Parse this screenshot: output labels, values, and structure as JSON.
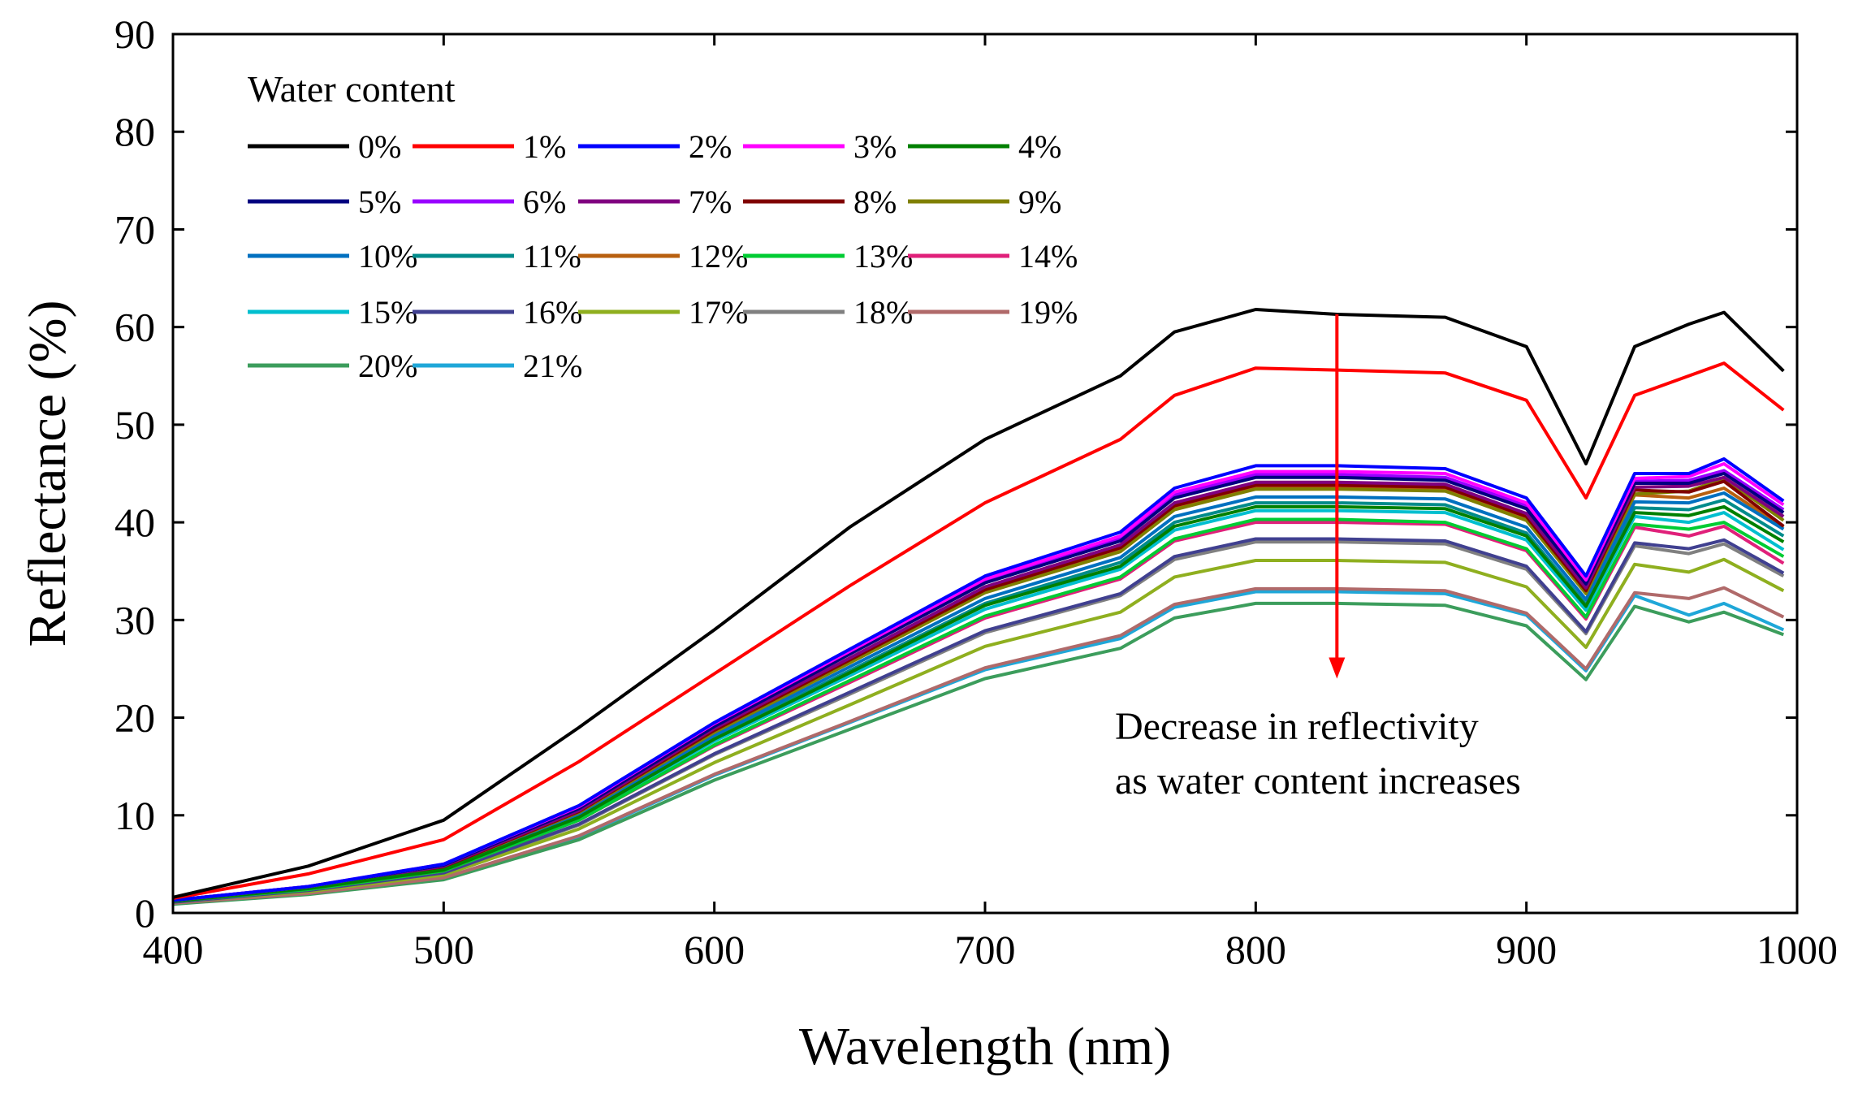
{
  "chart_data": {
    "type": "line",
    "title": "",
    "xlabel": "Wavelength (nm)",
    "ylabel": "Reflectance (%)",
    "xlim": [
      400,
      1000
    ],
    "ylim": [
      0,
      90
    ],
    "xticks": [
      400,
      500,
      600,
      700,
      800,
      900,
      1000
    ],
    "yticks": [
      0,
      10,
      20,
      30,
      40,
      50,
      60,
      70,
      80,
      90
    ],
    "grid": false,
    "legend_title": "Water content",
    "legend_position": "top-left",
    "x": [
      400,
      450,
      500,
      550,
      600,
      650,
      700,
      750,
      770,
      800,
      830,
      870,
      900,
      922,
      940,
      960,
      973,
      995
    ],
    "series": [
      {
        "name": "0%",
        "color": "#000000",
        "values": [
          1.6,
          4.8,
          9.5,
          19.0,
          29.0,
          39.5,
          48.5,
          55.0,
          59.5,
          61.8,
          61.3,
          61.0,
          58.0,
          46.0,
          58.0,
          60.3,
          61.5,
          55.5
        ]
      },
      {
        "name": "1%",
        "color": "#FF0000",
        "values": [
          1.5,
          4.0,
          7.5,
          15.5,
          24.5,
          33.5,
          42.0,
          48.5,
          53.0,
          55.8,
          55.6,
          55.3,
          52.5,
          42.5,
          53.0,
          55.0,
          56.3,
          51.5
        ]
      },
      {
        "name": "2%",
        "color": "#0000FF",
        "values": [
          1.3,
          2.7,
          5.0,
          11.0,
          19.5,
          27.0,
          34.5,
          39.0,
          43.5,
          45.8,
          45.8,
          45.5,
          42.5,
          34.5,
          45.0,
          45.0,
          46.5,
          42.2
        ]
      },
      {
        "name": "3%",
        "color": "#FF00FF",
        "values": [
          1.3,
          2.7,
          5.0,
          10.9,
          19.4,
          26.8,
          34.2,
          38.6,
          43.1,
          45.2,
          45.2,
          45.0,
          42.0,
          34.1,
          44.5,
          44.7,
          46.0,
          41.8
        ]
      },
      {
        "name": "4%",
        "color": "#008000",
        "values": [
          1.2,
          2.5,
          4.4,
          9.8,
          17.8,
          24.6,
          31.5,
          35.5,
          39.6,
          41.6,
          41.6,
          41.4,
          38.6,
          31.4,
          41.0,
          40.7,
          41.6,
          38.0
        ]
      },
      {
        "name": "5%",
        "color": "#000080",
        "values": [
          1.3,
          2.7,
          4.9,
          10.7,
          19.1,
          26.5,
          33.8,
          38.1,
          42.5,
          44.6,
          44.6,
          44.3,
          41.4,
          33.7,
          44.0,
          44.0,
          45.0,
          41.0
        ]
      },
      {
        "name": "6%",
        "color": "#9900FF",
        "values": [
          1.3,
          2.7,
          4.9,
          10.8,
          19.2,
          26.6,
          34.0,
          38.4,
          42.8,
          44.9,
          44.9,
          44.6,
          41.7,
          33.9,
          44.2,
          44.3,
          45.3,
          41.3
        ]
      },
      {
        "name": "7%",
        "color": "#800080",
        "values": [
          1.3,
          2.6,
          4.8,
          10.5,
          18.9,
          26.1,
          33.4,
          37.7,
          42.0,
          44.1,
          44.1,
          43.9,
          40.9,
          33.3,
          43.6,
          43.7,
          44.6,
          40.6
        ]
      },
      {
        "name": "8%",
        "color": "#800000",
        "values": [
          1.3,
          2.6,
          4.7,
          10.4,
          18.7,
          25.9,
          33.1,
          37.4,
          41.7,
          43.8,
          43.8,
          43.6,
          40.6,
          33.0,
          43.3,
          43.1,
          44.2,
          39.6
        ]
      },
      {
        "name": "9%",
        "color": "#808000",
        "values": [
          1.3,
          2.6,
          4.7,
          10.3,
          18.5,
          25.6,
          32.8,
          37.0,
          41.3,
          43.4,
          43.4,
          43.2,
          40.2,
          32.7,
          42.9,
          43.2,
          44.5,
          40.2
        ]
      },
      {
        "name": "10%",
        "color": "#0070C0",
        "values": [
          1.2,
          2.5,
          4.6,
          10.1,
          18.2,
          25.2,
          32.2,
          36.4,
          40.6,
          42.6,
          42.6,
          42.4,
          39.5,
          32.1,
          42.1,
          42.0,
          43.0,
          39.3
        ]
      },
      {
        "name": "11%",
        "color": "#008B8B",
        "values": [
          1.2,
          2.5,
          4.5,
          9.9,
          17.9,
          24.8,
          31.7,
          35.9,
          40.0,
          42.0,
          42.0,
          41.8,
          38.9,
          31.6,
          41.5,
          41.3,
          42.3,
          38.6
        ]
      },
      {
        "name": "12%",
        "color": "#B8600F",
        "values": [
          1.3,
          2.6,
          4.7,
          10.3,
          18.6,
          25.7,
          32.9,
          37.2,
          41.5,
          43.5,
          43.5,
          43.3,
          40.4,
          32.8,
          42.8,
          42.5,
          43.5,
          39.5
        ]
      },
      {
        "name": "13%",
        "color": "#00CC33",
        "values": [
          1.2,
          2.4,
          4.3,
          9.5,
          17.2,
          23.8,
          30.4,
          34.4,
          38.3,
          40.3,
          40.3,
          40.0,
          37.3,
          30.3,
          39.8,
          39.3,
          40.0,
          36.5
        ]
      },
      {
        "name": "14%",
        "color": "#E0207A",
        "values": [
          1.2,
          2.4,
          4.3,
          9.5,
          17.1,
          23.6,
          30.2,
          34.2,
          38.1,
          40.0,
          40.0,
          39.8,
          37.1,
          30.1,
          39.5,
          38.6,
          39.6,
          35.8
        ]
      },
      {
        "name": "15%",
        "color": "#00BFCF",
        "values": [
          1.2,
          2.5,
          4.4,
          9.8,
          17.6,
          24.3,
          31.1,
          35.2,
          39.2,
          41.2,
          41.2,
          41.0,
          38.2,
          31.0,
          40.6,
          40.0,
          41.0,
          37.2
        ]
      },
      {
        "name": "16%",
        "color": "#404090",
        "values": [
          1.1,
          2.3,
          4.1,
          9.1,
          16.3,
          22.6,
          28.9,
          32.7,
          36.5,
          38.3,
          38.3,
          38.1,
          35.5,
          28.8,
          37.9,
          37.3,
          38.2,
          34.8
        ]
      },
      {
        "name": "17%",
        "color": "#8FAF1F",
        "values": [
          1.1,
          2.2,
          3.9,
          8.6,
          15.4,
          21.3,
          27.3,
          30.8,
          34.4,
          36.1,
          36.1,
          35.9,
          33.4,
          27.2,
          35.7,
          34.9,
          36.2,
          33.0
        ]
      },
      {
        "name": "18%",
        "color": "#808080",
        "values": [
          1.1,
          2.2,
          4.1,
          9.0,
          16.2,
          22.4,
          28.7,
          32.5,
          36.2,
          38.0,
          38.0,
          37.8,
          35.2,
          28.6,
          37.6,
          36.8,
          37.8,
          34.5
        ]
      },
      {
        "name": "19%",
        "color": "#B06A6A",
        "values": [
          1.0,
          2.0,
          3.6,
          7.9,
          14.2,
          19.6,
          25.1,
          28.4,
          31.6,
          33.2,
          33.2,
          33.0,
          30.7,
          25.0,
          32.8,
          32.2,
          33.3,
          30.3
        ]
      },
      {
        "name": "20%",
        "color": "#3C9D5C",
        "values": [
          0.9,
          1.9,
          3.4,
          7.5,
          13.6,
          18.8,
          24.0,
          27.1,
          30.2,
          31.7,
          31.7,
          31.5,
          29.4,
          23.9,
          31.4,
          29.8,
          30.8,
          28.5
        ]
      },
      {
        "name": "21%",
        "color": "#1FA7D8",
        "values": [
          1.0,
          2.0,
          3.6,
          7.8,
          14.1,
          19.5,
          24.9,
          28.1,
          31.3,
          32.9,
          32.9,
          32.7,
          30.5,
          24.8,
          32.5,
          30.5,
          31.7,
          29.0
        ]
      }
    ],
    "annotation": {
      "text_line1": "Decrease in reflectivity",
      "text_line2": "as water content increases",
      "arrow_x": 830,
      "arrow_y_start": 61.3,
      "arrow_y_end": 24.0,
      "arrow_color": "#FF0000"
    }
  }
}
